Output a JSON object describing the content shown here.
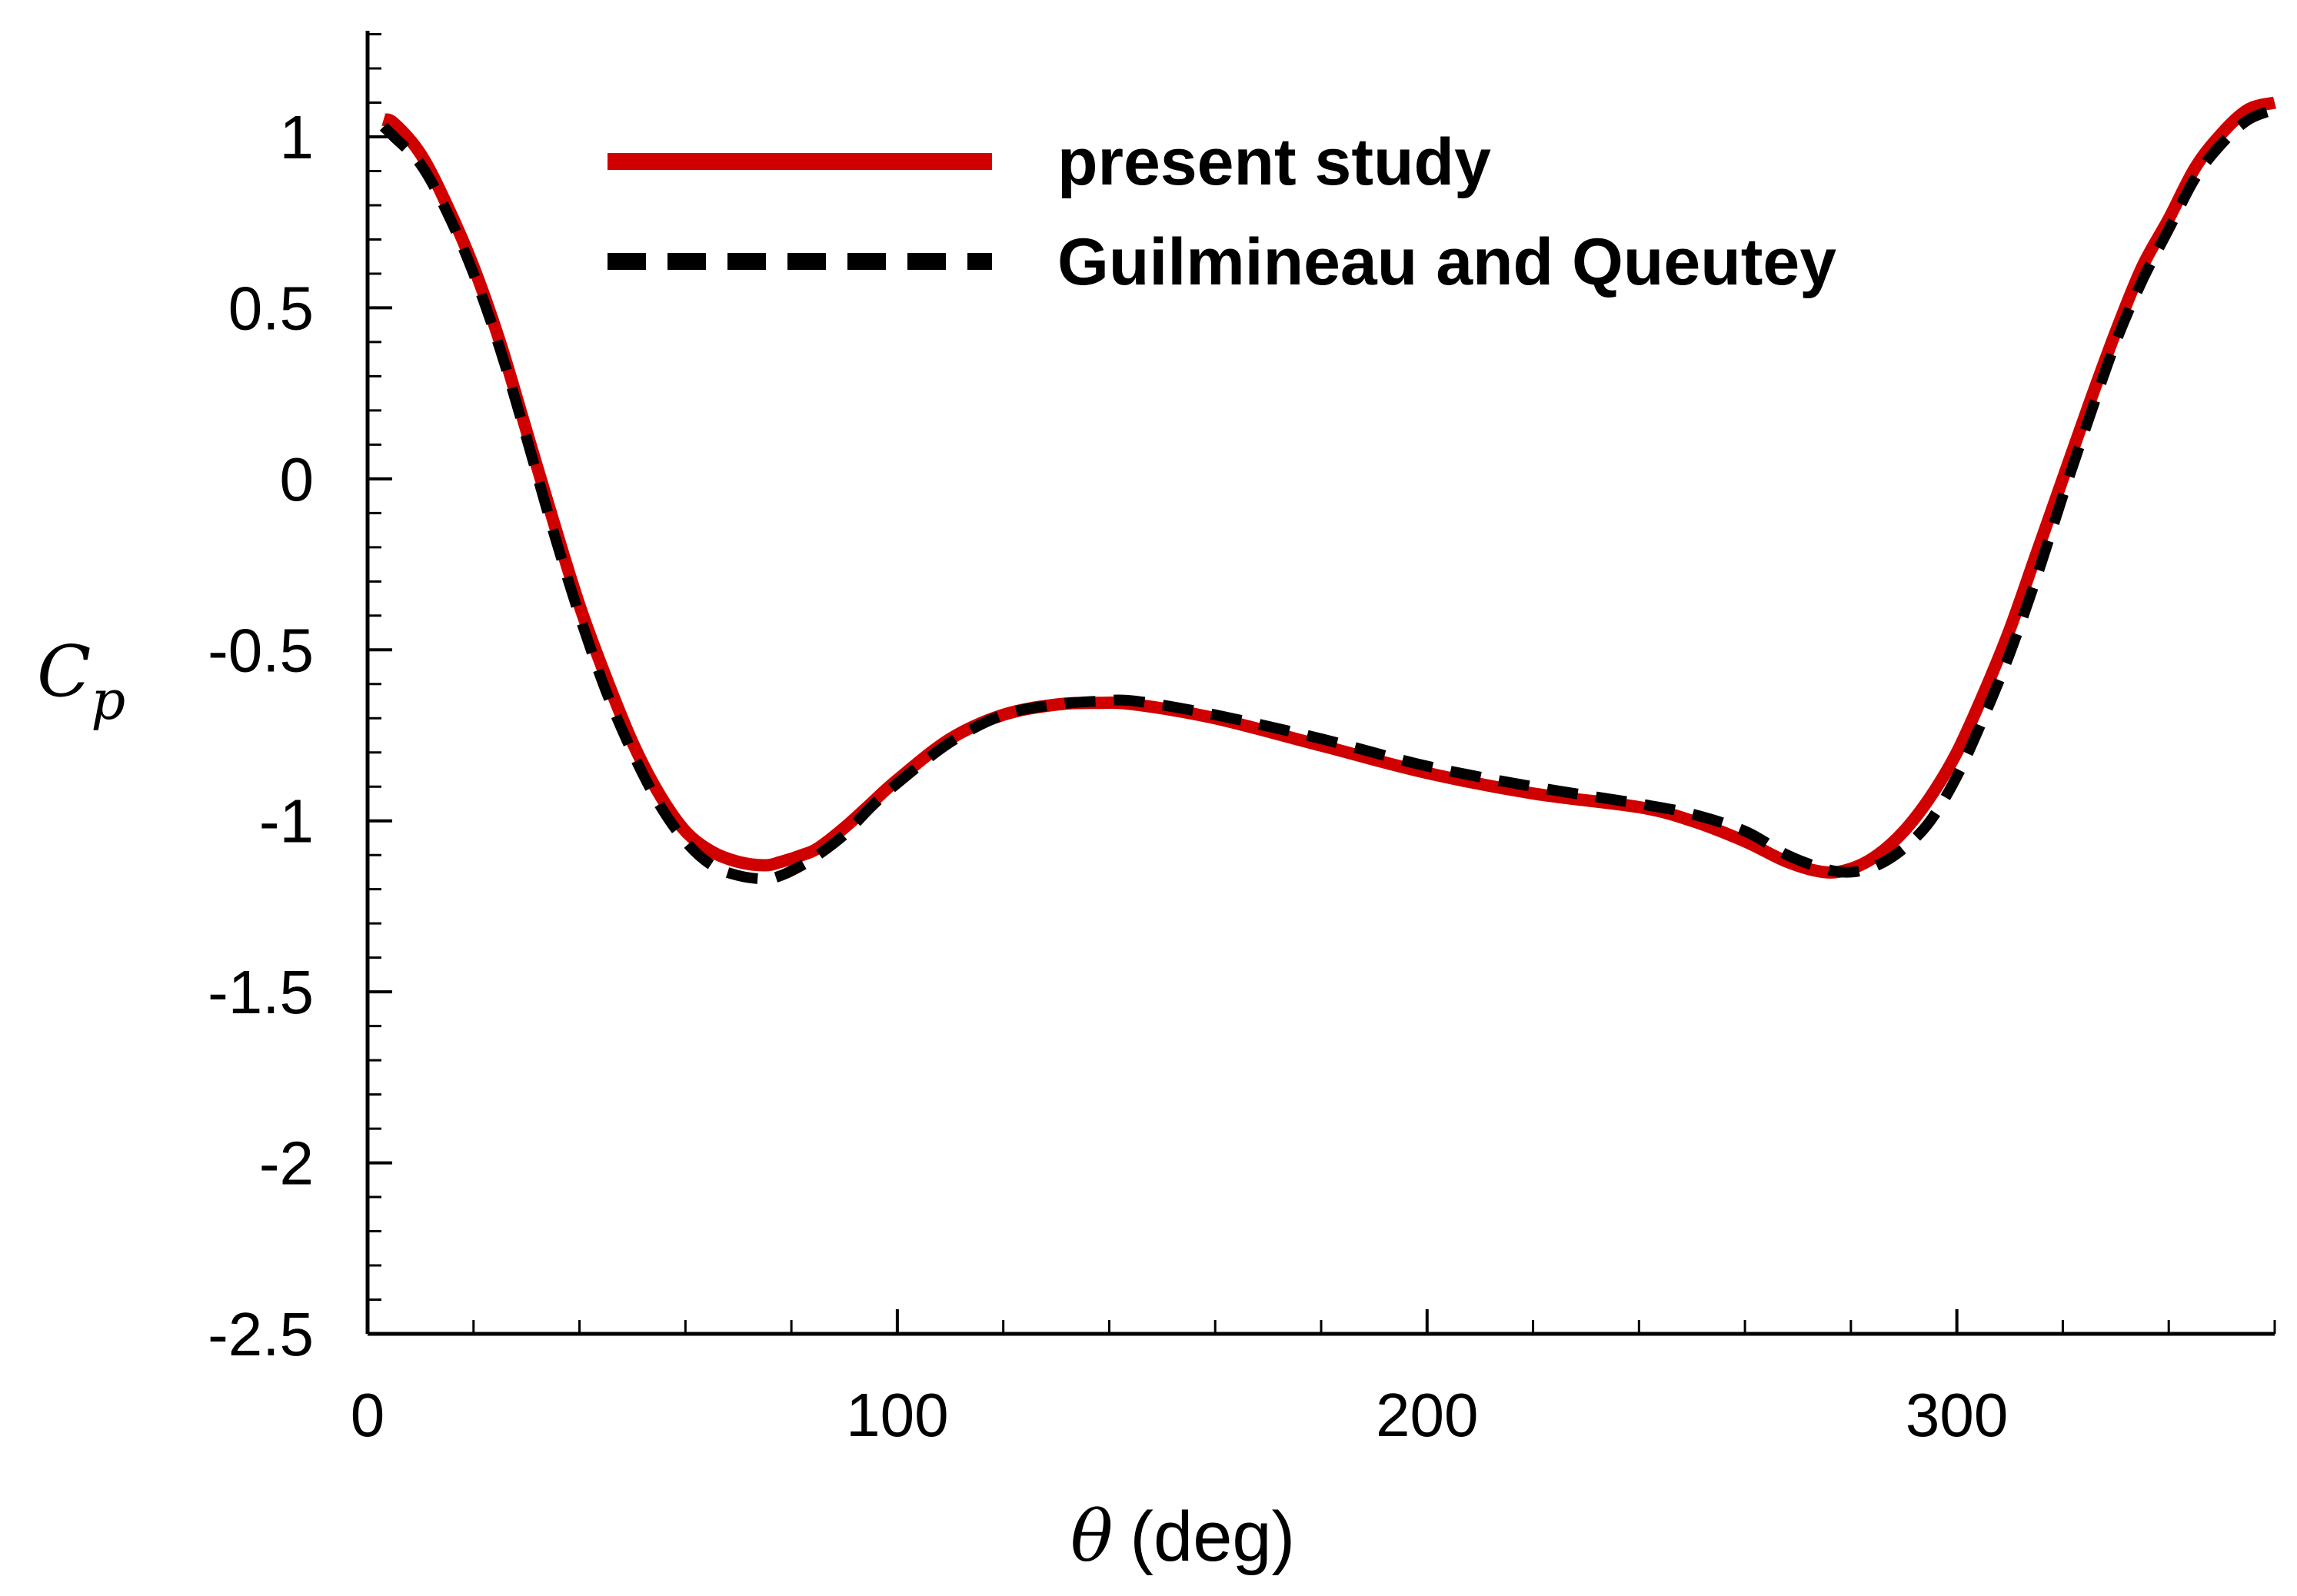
{
  "chart_data": {
    "type": "line",
    "title": "",
    "xlabel_symbol": "θ",
    "xlabel_unit": "(deg)",
    "ylabel_symbol": "C",
    "ylabel_subscript": "p",
    "xlim": [
      0,
      360
    ],
    "ylim": [
      -2.5,
      1.25
    ],
    "xticks": [
      0,
      100,
      200,
      300
    ],
    "xtick_labels": [
      "0",
      "100",
      "200",
      "300"
    ],
    "xminor_step": 20,
    "yticks": [
      1,
      0.5,
      0,
      -0.5,
      -1,
      -1.5,
      -2,
      -2.5
    ],
    "ytick_labels": [
      "1",
      "0.5",
      "0",
      "-0.5",
      "-1",
      "-1.5",
      "-2",
      "-2.5"
    ],
    "yminor_step": 0.1,
    "grid": false,
    "legend_position": "top",
    "series": [
      {
        "name": "present study",
        "color": "#d10000",
        "style": "solid",
        "x": [
          3,
          5,
          10,
          15,
          20,
          25,
          30,
          35,
          40,
          45,
          50,
          55,
          60,
          65,
          70,
          75,
          78,
          82,
          85,
          90,
          95,
          100,
          110,
          120,
          130,
          138,
          145,
          160,
          180,
          200,
          220,
          240,
          250,
          260,
          268,
          275,
          280,
          285,
          290,
          295,
          300,
          305,
          310,
          315,
          320,
          325,
          330,
          335,
          340,
          345,
          350,
          355,
          360
        ],
        "y": [
          1.05,
          1.04,
          0.95,
          0.8,
          0.62,
          0.4,
          0.14,
          -0.12,
          -0.37,
          -0.58,
          -0.77,
          -0.92,
          -1.03,
          -1.09,
          -1.12,
          -1.13,
          -1.12,
          -1.1,
          -1.08,
          -1.02,
          -0.95,
          -0.88,
          -0.76,
          -0.69,
          -0.66,
          -0.655,
          -0.66,
          -0.7,
          -0.78,
          -0.86,
          -0.92,
          -0.96,
          -1.0,
          -1.06,
          -1.12,
          -1.15,
          -1.14,
          -1.1,
          -1.03,
          -0.93,
          -0.8,
          -0.63,
          -0.44,
          -0.22,
          0.0,
          0.22,
          0.43,
          0.62,
          0.76,
          0.91,
          1.01,
          1.08,
          1.1
        ]
      },
      {
        "name": "Guilmineau and Queutey",
        "color": "#000000",
        "style": "dashed",
        "x": [
          3,
          5,
          10,
          15,
          20,
          25,
          30,
          35,
          40,
          45,
          50,
          55,
          60,
          65,
          70,
          75,
          78,
          82,
          85,
          90,
          95,
          100,
          110,
          120,
          130,
          138,
          145,
          160,
          180,
          200,
          220,
          240,
          250,
          260,
          268,
          275,
          280,
          285,
          290,
          295,
          300,
          305,
          310,
          315,
          320,
          325,
          330,
          335,
          340,
          345,
          350,
          355,
          360
        ],
        "y": [
          1.03,
          1.0,
          0.92,
          0.78,
          0.6,
          0.38,
          0.12,
          -0.15,
          -0.4,
          -0.62,
          -0.8,
          -0.95,
          -1.06,
          -1.13,
          -1.16,
          -1.17,
          -1.16,
          -1.13,
          -1.1,
          -1.04,
          -0.96,
          -0.89,
          -0.77,
          -0.69,
          -0.66,
          -0.65,
          -0.65,
          -0.69,
          -0.76,
          -0.84,
          -0.9,
          -0.95,
          -0.98,
          -1.03,
          -1.1,
          -1.14,
          -1.15,
          -1.13,
          -1.08,
          -1.0,
          -0.87,
          -0.7,
          -0.51,
          -0.29,
          -0.05,
          0.18,
          0.4,
          0.58,
          0.73,
          0.88,
          0.98,
          1.05,
          1.08
        ]
      }
    ]
  }
}
